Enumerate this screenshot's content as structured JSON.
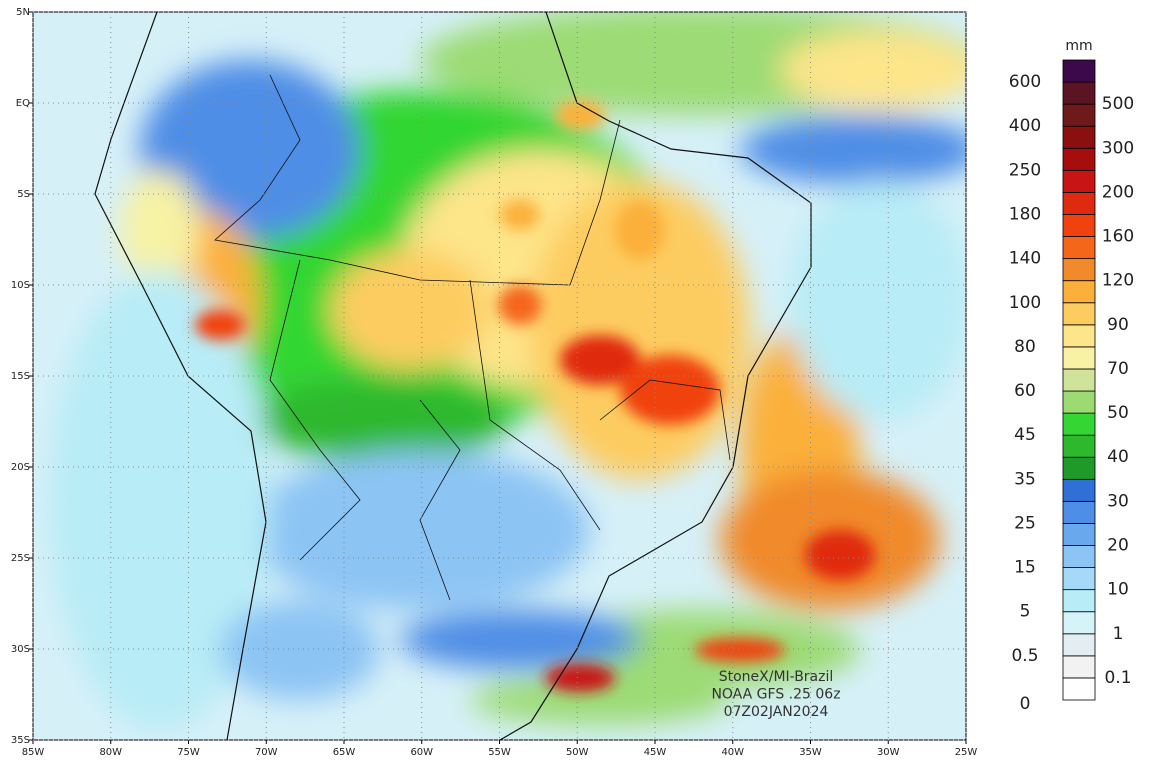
{
  "map": {
    "lon_ticks": [
      {
        "value": -85,
        "label": "85W"
      },
      {
        "value": -80,
        "label": "80W"
      },
      {
        "value": -75,
        "label": "75W"
      },
      {
        "value": -70,
        "label": "70W"
      },
      {
        "value": -65,
        "label": "65W"
      },
      {
        "value": -60,
        "label": "60W"
      },
      {
        "value": -55,
        "label": "55W"
      },
      {
        "value": -50,
        "label": "50W"
      },
      {
        "value": -45,
        "label": "45W"
      },
      {
        "value": -40,
        "label": "40W"
      },
      {
        "value": -35,
        "label": "35W"
      },
      {
        "value": -30,
        "label": "30W"
      },
      {
        "value": -25,
        "label": "25W"
      }
    ],
    "lat_ticks": [
      {
        "value": 5,
        "label": "5N"
      },
      {
        "value": 0,
        "label": "EQ"
      },
      {
        "value": -5,
        "label": "5S"
      },
      {
        "value": -10,
        "label": "10S"
      },
      {
        "value": -15,
        "label": "15S"
      },
      {
        "value": -20,
        "label": "20S"
      },
      {
        "value": -25,
        "label": "25S"
      },
      {
        "value": -30,
        "label": "30S"
      },
      {
        "value": -35,
        "label": "35S"
      }
    ],
    "credit": [
      "StoneX/MI-Brazil",
      "NOAA GFS .25 06z",
      "07Z02JAN2024"
    ]
  },
  "colorbar": {
    "unit": "mm",
    "levels": [
      0,
      0.1,
      0.5,
      1,
      5,
      10,
      15,
      20,
      25,
      30,
      35,
      40,
      45,
      50,
      60,
      70,
      80,
      90,
      100,
      120,
      140,
      160,
      180,
      200,
      250,
      300,
      400,
      500,
      600
    ],
    "colors": [
      "#ffffff",
      "#f2f2f2",
      "#e4eef2",
      "#d6f3f8",
      "#b8ecf6",
      "#a6d8f8",
      "#8cc4f4",
      "#6aa8ee",
      "#4f8ee6",
      "#2f6fd6",
      "#1f9a2a",
      "#2eb82e",
      "#33d633",
      "#9cdb74",
      "#cfe39a",
      "#f7f2a4",
      "#fde58a",
      "#fdcc60",
      "#fbb03a",
      "#f08a2a",
      "#f4661a",
      "#f0420f",
      "#e02a10",
      "#c81414",
      "#a80d0d",
      "#8a1010",
      "#6e1a1a",
      "#5a1424",
      "#3c0a4a"
    ]
  }
}
